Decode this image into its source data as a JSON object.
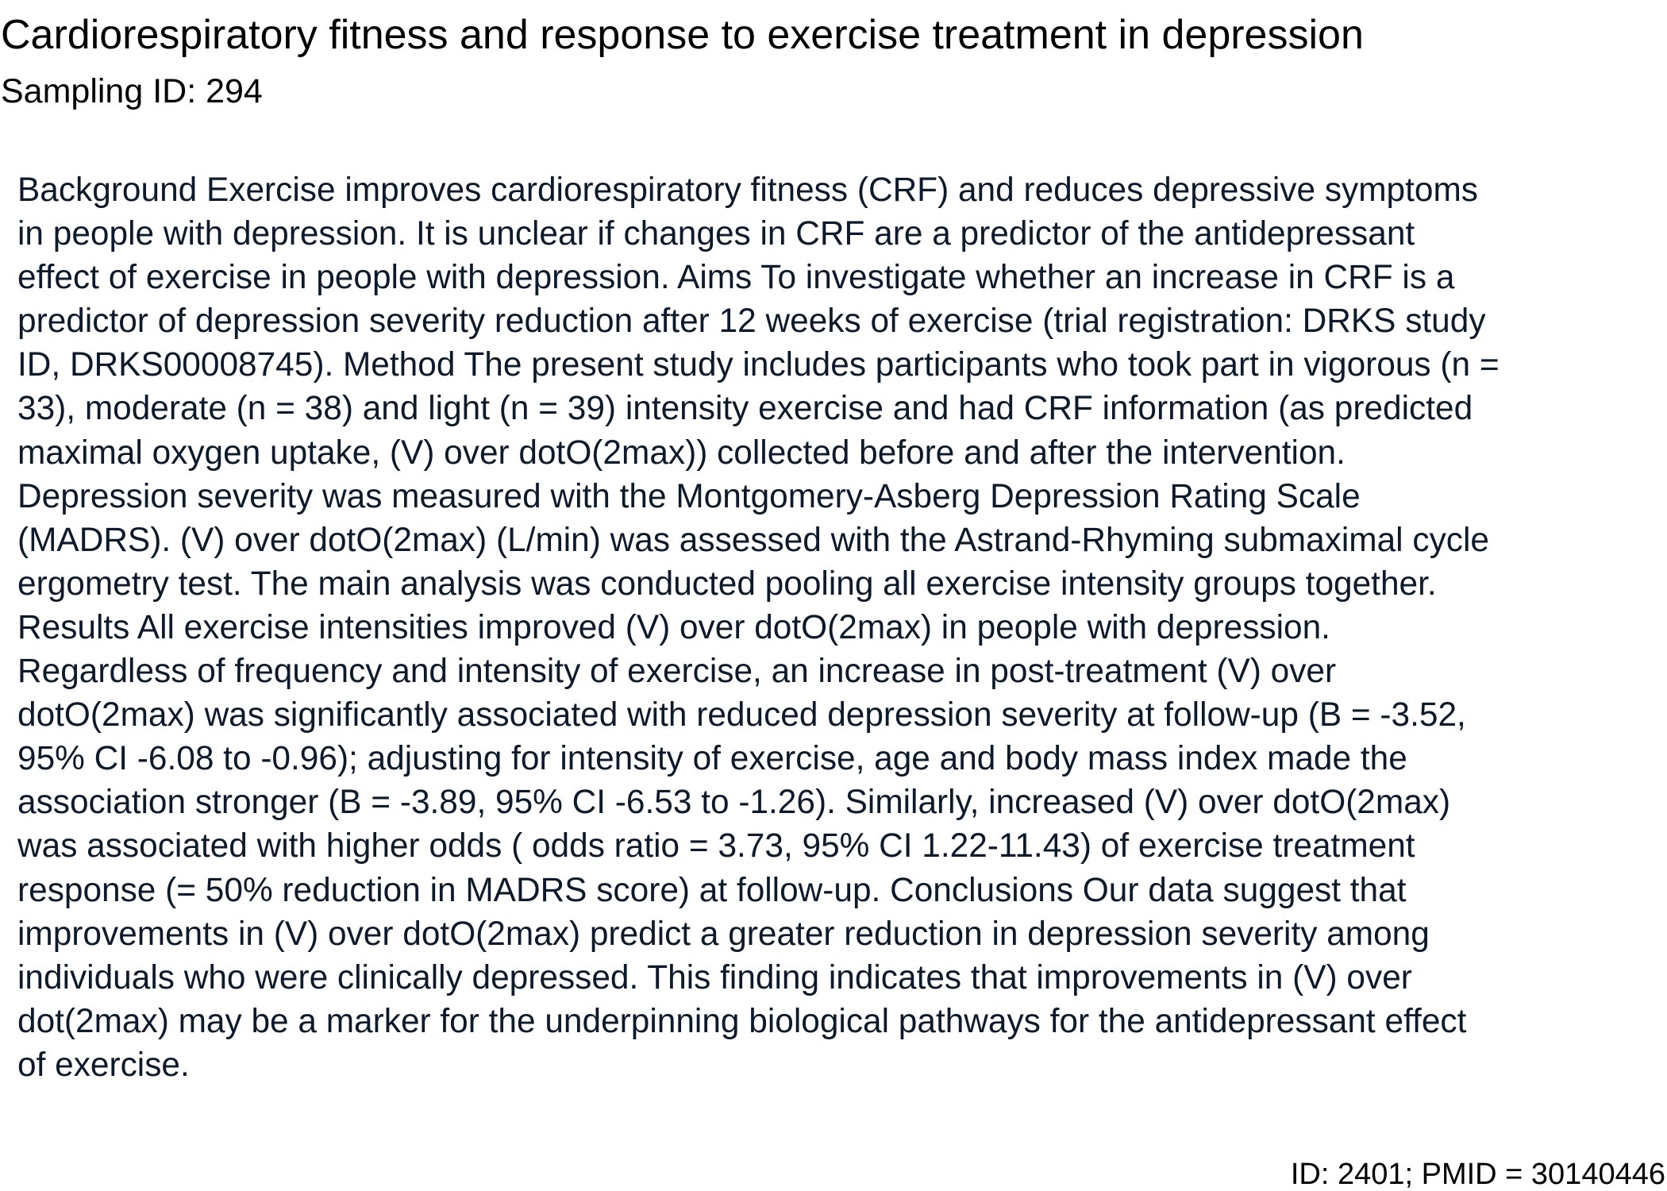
{
  "document": {
    "title": "Cardiorespiratory fitness and response to exercise treatment in depression",
    "sampling_id": "Sampling ID: 294",
    "abstract_lines": [
      "Background Exercise improves cardiorespiratory fitness (CRF) and reduces depressive symptoms",
      "in people with depression. It is unclear if changes in CRF are a predictor of the antidepressant",
      "effect of exercise in people with depression. Aims To investigate whether an increase in CRF is a",
      "predictor of depression severity reduction after 12 weeks of exercise (trial registration: DRKS study",
      "ID, DRKS00008745). Method The present study includes participants who took part in vigorous (n =",
      "33), moderate (n = 38) and light (n = 39) intensity exercise and had CRF information (as predicted",
      "maximal oxygen uptake, (V) over dotO(2max)) collected before and after the intervention.",
      "Depression severity was measured with the Montgomery-Asberg Depression Rating Scale",
      "(MADRS). (V) over dotO(2max) (L/min) was assessed with the Astrand-Rhyming submaximal cycle",
      "ergometry test. The main analysis was conducted pooling all exercise intensity groups together.",
      "Results All exercise intensities improved (V) over dotO(2max) in people with depression.",
      "Regardless of frequency and intensity of exercise, an increase in post-treatment (V) over",
      "dotO(2max) was significantly associated with reduced depression severity at follow-up (B = -3.52,",
      "95% CI -6.08 to -0.96); adjusting for intensity of exercise, age and body mass index made the",
      "association stronger (B = -3.89, 95% CI -6.53 to -1.26). Similarly, increased (V) over dotO(2max)",
      "was associated with higher odds ( odds ratio = 3.73, 95% CI 1.22-11.43) of exercise treatment",
      "response (= 50% reduction in MADRS score) at follow-up. Conclusions Our data suggest that",
      "improvements in (V) over dotO(2max) predict a greater reduction in depression severity among",
      "individuals who were clinically depressed. This finding indicates that improvements in (V) over",
      "dot(2max) may be a marker for the underpinning biological pathways for the antidepressant effect",
      "of exercise."
    ],
    "footer_id": "ID: 2401; PMID = 30140446"
  }
}
